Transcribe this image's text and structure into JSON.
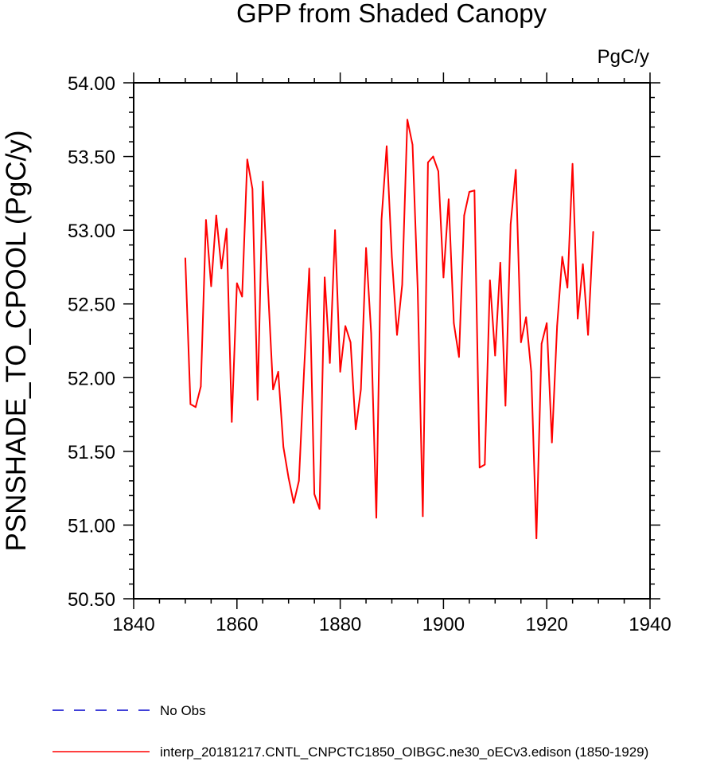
{
  "chart_data": {
    "type": "line",
    "title": "GPP from Shaded Canopy",
    "units_label": "PgC/y",
    "ylabel": "PSNSHADE_TO_CPOOL  (PgC/y)",
    "xlabel": "",
    "xlim": [
      1840,
      1940
    ],
    "ylim": [
      50.5,
      54.0
    ],
    "x_ticks": [
      1840,
      1860,
      1880,
      1900,
      1920,
      1940
    ],
    "x_tick_labels": [
      "1840",
      "1860",
      "1880",
      "1900",
      "1920",
      "1940"
    ],
    "y_ticks": [
      50.5,
      51.0,
      51.5,
      52.0,
      52.5,
      53.0,
      53.5,
      54.0
    ],
    "y_tick_labels": [
      "50.50",
      "51.00",
      "51.50",
      "52.00",
      "52.50",
      "53.00",
      "53.50",
      "54.00"
    ],
    "grid": false,
    "series": [
      {
        "name": "interp_20181217.CNTL_CNPCTC1850_OIBGC.ne30_oECv3.edison (1850-1929)",
        "color": "#ff0000",
        "style": "solid",
        "x": [
          1850,
          1851,
          1852,
          1853,
          1854,
          1855,
          1856,
          1857,
          1858,
          1859,
          1860,
          1861,
          1862,
          1863,
          1864,
          1865,
          1866,
          1867,
          1868,
          1869,
          1870,
          1871,
          1872,
          1873,
          1874,
          1875,
          1876,
          1877,
          1878,
          1879,
          1880,
          1881,
          1882,
          1883,
          1884,
          1885,
          1886,
          1887,
          1888,
          1889,
          1890,
          1891,
          1892,
          1893,
          1894,
          1895,
          1896,
          1897,
          1898,
          1899,
          1900,
          1901,
          1902,
          1903,
          1904,
          1905,
          1906,
          1907,
          1908,
          1909,
          1910,
          1911,
          1912,
          1913,
          1914,
          1915,
          1916,
          1917,
          1918,
          1919,
          1920,
          1921,
          1922,
          1923,
          1924,
          1925,
          1926,
          1927,
          1928,
          1929
        ],
        "values": [
          52.81,
          51.82,
          51.8,
          51.94,
          53.07,
          52.62,
          53.1,
          52.74,
          53.01,
          51.7,
          52.64,
          52.55,
          53.48,
          53.28,
          51.85,
          53.33,
          52.62,
          51.92,
          52.04,
          51.53,
          51.32,
          51.15,
          51.3,
          52.05,
          52.74,
          51.21,
          51.11,
          52.68,
          52.1,
          53.0,
          52.04,
          52.35,
          52.24,
          51.65,
          51.92,
          52.88,
          52.3,
          51.05,
          53.07,
          53.57,
          52.82,
          52.29,
          52.63,
          53.75,
          53.58,
          52.6,
          51.06,
          53.46,
          53.5,
          53.4,
          52.68,
          53.21,
          52.37,
          52.14,
          53.1,
          53.26,
          53.27,
          51.39,
          51.41,
          52.66,
          52.15,
          52.78,
          51.81,
          53.04,
          53.41,
          52.24,
          52.41,
          52.04,
          50.91,
          52.23,
          52.37,
          51.56,
          52.35,
          52.82,
          52.61,
          53.45,
          52.4,
          52.77,
          52.29,
          52.99
        ]
      }
    ],
    "legend": {
      "placement": "bottom-left",
      "entries": [
        {
          "label": "No Obs",
          "color": "#0000cc",
          "style": "dashed"
        },
        {
          "label": "interp_20181217.CNTL_CNPCTC1850_OIBGC.ne30_oECv3.edison (1850-1929)",
          "color": "#ff0000",
          "style": "solid"
        }
      ]
    }
  }
}
